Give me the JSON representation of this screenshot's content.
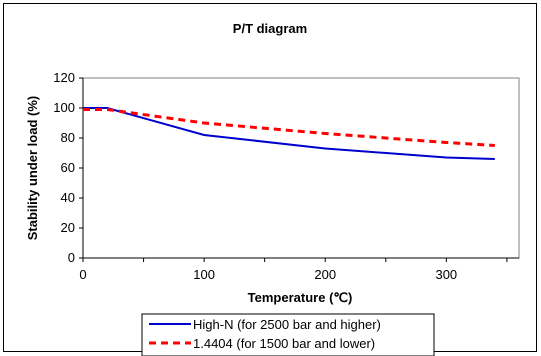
{
  "chart_data": {
    "type": "line",
    "title": "P/T diagram",
    "xlabel": "Temperature (℃)",
    "ylabel": "Stability under load  (%)",
    "xlim": [
      0,
      360
    ],
    "ylim": [
      0,
      120
    ],
    "xticks": [
      0,
      100,
      200,
      300
    ],
    "yticks": [
      0,
      20,
      40,
      60,
      80,
      100,
      120
    ],
    "grid": false,
    "legend_position": "bottom",
    "series": [
      {
        "name": "High-N (for 2500 bar and higher)",
        "color": "#0000cc",
        "line_style": "solid",
        "x": [
          0,
          20,
          100,
          200,
          300,
          340
        ],
        "y": [
          100,
          100,
          82,
          73,
          67,
          66
        ]
      },
      {
        "name": "1.4404 (for 1500 bar and lower)",
        "color": "#ff0000",
        "line_style": "dashed",
        "x": [
          0,
          20,
          100,
          200,
          300,
          340
        ],
        "y": [
          99,
          99,
          90,
          83,
          77,
          75
        ]
      }
    ]
  }
}
